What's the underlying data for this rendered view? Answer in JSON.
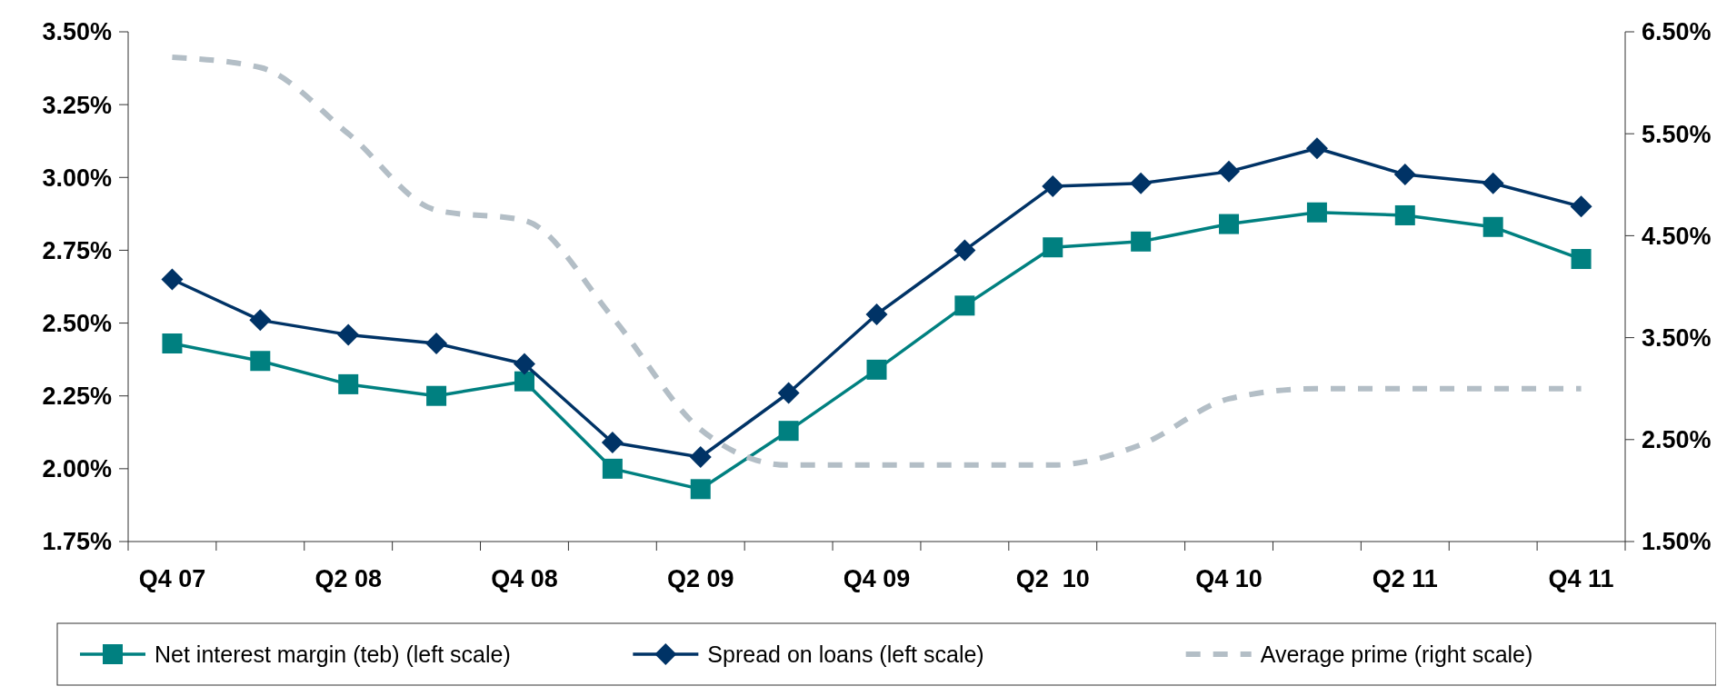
{
  "chart_data": {
    "type": "line",
    "categories": [
      "Q4 07",
      null,
      "Q2 08",
      null,
      "Q4 08",
      null,
      "Q2 09",
      null,
      "Q4 09",
      null,
      "Q2  10",
      null,
      "Q4 10",
      null,
      "Q2 11",
      null,
      "Q4 11"
    ],
    "ylim": [
      1.75,
      3.5
    ],
    "yticks": [
      {
        "value": 1.75,
        "label": "1.75%"
      },
      {
        "value": 2,
        "label": "2.00%"
      },
      {
        "value": 2.25,
        "label": "2.25%"
      },
      {
        "value": 2.5,
        "label": "2.50%"
      },
      {
        "value": 2.75,
        "label": "2.75%"
      },
      {
        "value": 3,
        "label": "3.00%"
      },
      {
        "value": 3.25,
        "label": "3.25%"
      },
      {
        "value": 3.5,
        "label": "3.50%"
      }
    ],
    "y2lim": [
      1.5,
      6.5
    ],
    "y2ticks": [
      {
        "value": 1.5,
        "label": "1.50%"
      },
      {
        "value": 2.5,
        "label": "2.50%"
      },
      {
        "value": 3.5,
        "label": "3.50%"
      },
      {
        "value": 4.5,
        "label": "4.50%"
      },
      {
        "value": 5.5,
        "label": "5.50%"
      },
      {
        "value": 6.5,
        "label": "6.50%"
      }
    ],
    "series": [
      {
        "name": "Net interest margin (teb) (left scale)",
        "color": "#008080",
        "marker": "square",
        "line_style": "solid",
        "values": [
          2.43,
          2.37,
          2.29,
          2.25,
          2.3,
          2.0,
          1.93,
          2.13,
          2.34,
          2.56,
          2.76,
          2.78,
          2.84,
          2.88,
          2.87,
          2.83,
          2.72
        ]
      },
      {
        "name": "Spread on loans (left scale)",
        "color": "#003366",
        "marker": "diamond",
        "line_style": "solid",
        "values": [
          2.65,
          2.51,
          2.46,
          2.43,
          2.36,
          2.09,
          2.04,
          2.26,
          2.53,
          2.75,
          2.97,
          2.98,
          3.02,
          3.1,
          3.01,
          2.98,
          2.9
        ]
      },
      {
        "name": "Average prime (right scale)",
        "color": "#b3bec6",
        "marker": "none",
        "line_style": "dashed",
        "axis": "y2",
        "values": [
          6.25,
          6.15,
          5.5,
          4.75,
          4.65,
          3.7,
          2.6,
          2.25,
          2.25,
          2.25,
          2.25,
          2.45,
          2.9,
          3.0,
          3.0,
          3.0,
          3.0
        ]
      }
    ],
    "grid": false,
    "legend": "bottom"
  }
}
